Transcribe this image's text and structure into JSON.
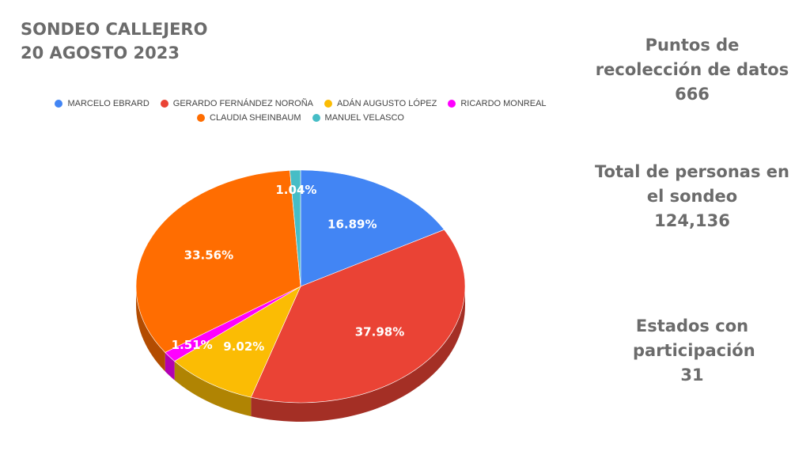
{
  "title": {
    "line1": "SONDEO CALLEJERO",
    "line2": "20 AGOSTO 2023"
  },
  "stats": [
    {
      "label": "Puntos de recolección de datos",
      "value": "666"
    },
    {
      "label": "Total de personas en el sondeo",
      "value": "124,136"
    },
    {
      "label": "Estados con participación",
      "value": "31"
    }
  ],
  "chart_data": {
    "type": "pie",
    "title": "",
    "legend_position": "top",
    "series": [
      {
        "name": "MARCELO EBRARD",
        "value": 16.89,
        "label": "16.89%",
        "color": "#4285f4"
      },
      {
        "name": "GERARDO FERNÁNDEZ NOROÑA",
        "value": 37.98,
        "label": "37.98%",
        "color": "#ea4335"
      },
      {
        "name": "ADÁN AUGUSTO LÓPEZ",
        "value": 9.02,
        "label": "9.02%",
        "color": "#fbbc04"
      },
      {
        "name": "RICARDO MONREAL",
        "value": 1.51,
        "label": "1.51%",
        "color": "#ff00ff"
      },
      {
        "name": "CLAUDIA SHEINBAUM",
        "value": 33.56,
        "label": "33.56%",
        "color": "#ff6d01"
      },
      {
        "name": "MANUEL VELASCO",
        "value": 1.04,
        "label": "1.04%",
        "color": "#46bdc6"
      }
    ]
  }
}
